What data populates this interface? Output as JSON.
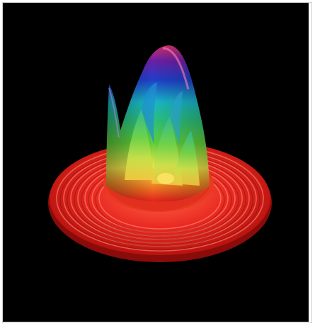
{
  "image": {
    "background": "#000000",
    "frame_border": "#cfcfcf",
    "palette": [
      "#e11b1b",
      "#f5a623",
      "#f5e84a",
      "#33c24a",
      "#18b6c8",
      "#1f3fc9",
      "#7a1fa0",
      "#d0306a"
    ]
  }
}
